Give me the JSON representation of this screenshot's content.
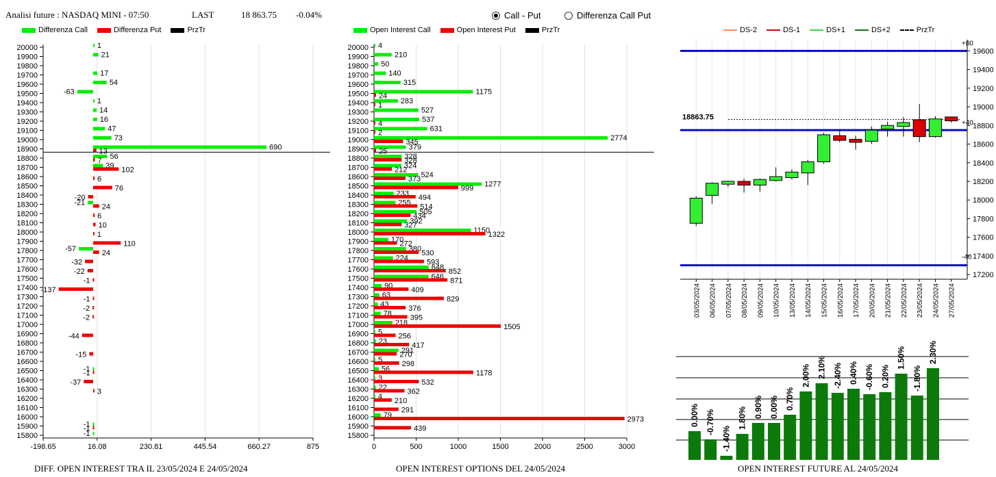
{
  "header": {
    "title": "Analisi future : NASDAQ MINI - 07:50",
    "last_label": "LAST",
    "last_value": "18 863.75",
    "change": "-0.04%"
  },
  "radio": {
    "call_put": "Call - Put",
    "diff_call_put": "Differenza Call Put",
    "selected": "Call - Put"
  },
  "legends": {
    "left": [
      {
        "label": "Differenza Call",
        "color": "#00ee00"
      },
      {
        "label": "Differenza Put",
        "color": "#ee0000"
      },
      {
        "label": "PrzTr",
        "color": "#000000"
      }
    ],
    "mid": [
      {
        "label": "Open Interest Call",
        "color": "#00ee00"
      },
      {
        "label": "Open Interest Put",
        "color": "#ee0000"
      },
      {
        "label": "PrzTr",
        "color": "#000000"
      }
    ],
    "right": [
      {
        "label": "DS-2",
        "color": "#ff8c5a",
        "style": "solid"
      },
      {
        "label": "DS-1",
        "color": "#dd0000",
        "style": "solid"
      },
      {
        "label": "DS+1",
        "color": "#33dd33",
        "style": "solid"
      },
      {
        "label": "DS+2",
        "color": "#117711",
        "style": "solid"
      },
      {
        "label": "PrzTr",
        "color": "#000000",
        "style": "dashed"
      }
    ]
  },
  "captions": {
    "left": "DIFF. OPEN INTEREST TRA IL 23/05/2024 E 24/05/2024",
    "mid": "OPEN INTEREST OPTIONS DEL 24/05/2024",
    "right": "OPEN INTEREST FUTURE AL 24/05/2024"
  },
  "chart_data": [
    {
      "type": "bar",
      "orientation": "horizontal",
      "strikes": [
        20000,
        19900,
        19800,
        19700,
        19600,
        19500,
        19400,
        19300,
        19200,
        19100,
        19000,
        18900,
        18800,
        18700,
        18600,
        18500,
        18400,
        18300,
        18200,
        18100,
        18000,
        17900,
        17800,
        17700,
        17600,
        17500,
        17400,
        17300,
        17200,
        17100,
        17000,
        16900,
        16800,
        16700,
        16600,
        16500,
        16400,
        16300,
        16200,
        16100,
        16000,
        15900,
        15800
      ],
      "series": [
        {
          "name": "Differenza Call",
          "color": "#00ee00",
          "values": [
            1,
            21,
            null,
            17,
            54,
            -63,
            1,
            14,
            16,
            47,
            73,
            690,
            56,
            39,
            null,
            null,
            null,
            -21,
            null,
            null,
            null,
            null,
            -57,
            null,
            null,
            null,
            null,
            null,
            null,
            null,
            null,
            null,
            null,
            null,
            null,
            -1,
            null,
            null,
            null,
            null,
            null,
            -1,
            -1
          ]
        },
        {
          "name": "Differenza Put",
          "color": "#ee0000",
          "values": [
            null,
            null,
            null,
            null,
            null,
            null,
            null,
            null,
            null,
            null,
            null,
            13,
            7,
            102,
            6,
            76,
            -20,
            24,
            6,
            10,
            1,
            110,
            24,
            -32,
            -22,
            -1,
            -137,
            -1,
            -2,
            -2,
            null,
            -44,
            null,
            -15,
            null,
            -1,
            -37,
            3,
            null,
            null,
            null,
            -1,
            null
          ]
        }
      ],
      "przTr": 18863.75,
      "xlim": [
        -198.65,
        875
      ],
      "xticks": [
        -198.65,
        16.08,
        230.81,
        445.54,
        660.27,
        875
      ],
      "xtick_labels": [
        "-198.65",
        "16.08",
        "230.81",
        "445.54",
        "660.27",
        "875"
      ]
    },
    {
      "type": "bar",
      "orientation": "horizontal",
      "strikes": [
        20000,
        19900,
        19800,
        19700,
        19600,
        19500,
        19400,
        19300,
        19200,
        19100,
        19000,
        18900,
        18800,
        18700,
        18600,
        18500,
        18400,
        18300,
        18200,
        18100,
        18000,
        17900,
        17800,
        17700,
        17600,
        17500,
        17400,
        17300,
        17200,
        17100,
        17000,
        16900,
        16800,
        16700,
        16600,
        16500,
        16400,
        16300,
        16200,
        16100,
        16000,
        15900,
        15800
      ],
      "series": [
        {
          "name": "Open Interest Call",
          "color": "#00ee00",
          "values": [
            4,
            210,
            50,
            140,
            315,
            1175,
            283,
            527,
            537,
            631,
            2774,
            379,
            328,
            324,
            524,
            1277,
            233,
            255,
            505,
            392,
            1150,
            170,
            380,
            224,
            648,
            646,
            90,
            63,
            43,
            78,
            218,
            5,
            23,
            291,
            5,
            56,
            3,
            22,
            4,
            null,
            79,
            null,
            null
          ]
        },
        {
          "name": "Open Interest Put",
          "color": "#ee0000",
          "values": [
            null,
            null,
            null,
            null,
            null,
            24,
            1,
            null,
            4,
            2,
            345,
            25,
            328,
            212,
            373,
            999,
            494,
            514,
            434,
            327,
            1322,
            272,
            530,
            593,
            852,
            871,
            409,
            829,
            376,
            395,
            1505,
            256,
            417,
            270,
            298,
            1178,
            532,
            362,
            210,
            291,
            2973,
            439,
            null
          ]
        }
      ],
      "przTr": 18863.75,
      "xlim": [
        0,
        3000
      ],
      "xticks": [
        0,
        500,
        1000,
        1500,
        2000,
        2500,
        3000
      ]
    },
    {
      "type": "candlestick",
      "dates": [
        "03/05/2024",
        "06/05/2024",
        "07/05/2024",
        "08/05/2024",
        "09/05/2024",
        "10/05/2024",
        "13/05/2024",
        "14/05/2024",
        "15/05/2024",
        "16/05/2024",
        "17/05/2024",
        "20/05/2024",
        "21/05/2024",
        "22/05/2024",
        "23/05/2024",
        "24/05/2024",
        "27/05/2024"
      ],
      "ohlc": [
        [
          17750,
          18040,
          17720,
          18020
        ],
        [
          18050,
          18190,
          17960,
          18180
        ],
        [
          18180,
          18200,
          18140,
          18190
        ],
        [
          18200,
          18230,
          18080,
          18160
        ],
        [
          18160,
          18230,
          18090,
          18220
        ],
        [
          18220,
          18350,
          18200,
          18240
        ],
        [
          18240,
          18330,
          18220,
          18300
        ],
        [
          18290,
          18430,
          18160,
          18410
        ],
        [
          18410,
          18720,
          18390,
          18700
        ],
        [
          18690,
          18760,
          18620,
          18640
        ],
        [
          18640,
          18690,
          18540,
          18630
        ],
        [
          18630,
          18790,
          18600,
          18750
        ],
        [
          18760,
          18840,
          18680,
          18800
        ],
        [
          18800,
          18890,
          18680,
          18820
        ],
        [
          18860,
          19030,
          18620,
          18680
        ],
        [
          18680,
          18900,
          18670,
          18870
        ],
        [
          18880,
          18890,
          18830,
          18860
        ]
      ],
      "price_label": "18863.75",
      "upper_band": 19600,
      "lower_band": 17300,
      "mid_band": 18750,
      "upper_label": "+80",
      "lower_label": "-40",
      "przTr_label": "+40",
      "ylim": [
        17150,
        19720
      ],
      "yticks": [
        17200,
        17400,
        17600,
        17800,
        18000,
        18200,
        18400,
        18600,
        18800,
        19000,
        19200,
        19400,
        19600
      ]
    },
    {
      "type": "bar",
      "values": [
        0.0,
        -0.7,
        -1.4,
        1.8,
        0.9,
        0.0,
        0.7,
        2.0,
        2.1,
        -2.4,
        0.4,
        -0.6,
        0.2,
        1.5,
        -1.8,
        2.3
      ],
      "labels": [
        "0.00%",
        "-0.70%",
        "-1.40%",
        "1.80%",
        "0.90%",
        "0.00%",
        "0.70%",
        "2.00%",
        "2.10%",
        "-2.40%",
        "0.40%",
        "-0.60%",
        "0.20%",
        "1.50%",
        "-1.80%",
        "2.30%"
      ],
      "heights": [
        42,
        30,
        6,
        38,
        54,
        54,
        66,
        100,
        112,
        98,
        104,
        96,
        99,
        126,
        94,
        134
      ],
      "color": "#0b7a0b"
    }
  ]
}
